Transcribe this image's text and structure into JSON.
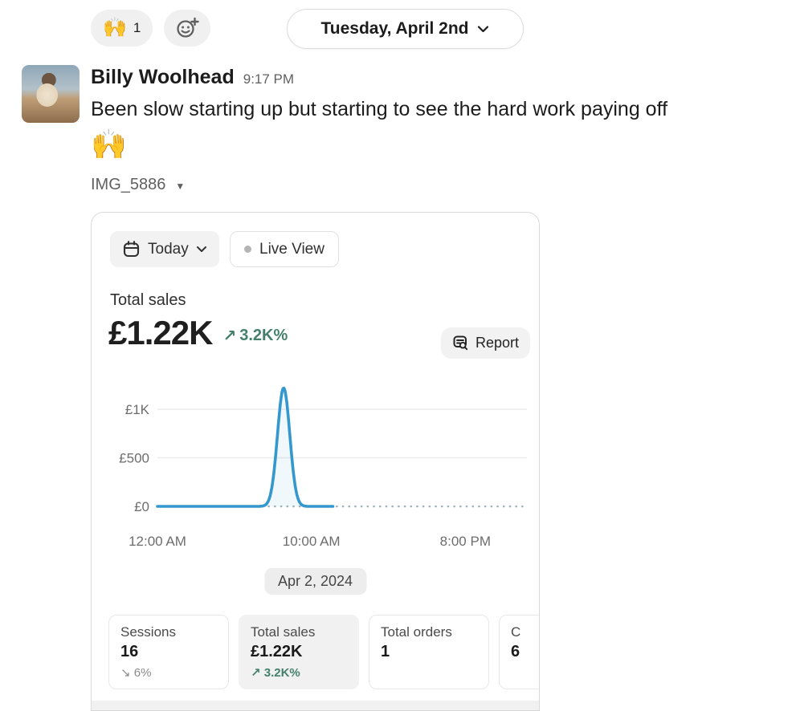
{
  "reactions": {
    "emoji": "🙌",
    "count": "1"
  },
  "date_divider": {
    "label": "Tuesday, April 2nd"
  },
  "message": {
    "author": "Billy Woolhead",
    "timestamp": "9:17 PM",
    "text": "Been slow starting up but starting to see the hard work paying off",
    "emoji": "🙌",
    "attachment_name": "IMG_5886"
  },
  "dashboard": {
    "date_range_button": "Today",
    "live_view_button": "Live View",
    "metric_title": "Total sales",
    "metric_value": "£1.22K",
    "metric_delta_arrow": "↗",
    "metric_delta": "3.2K%",
    "report_button": "Report",
    "date_pill": "Apr 2, 2024",
    "cards": [
      {
        "label": "Sessions",
        "value": "16",
        "delta_arrow": "↘",
        "delta": "6%",
        "direction": "down",
        "selected": false
      },
      {
        "label": "Total sales",
        "value": "£1.22K",
        "delta_arrow": "↗",
        "delta": "3.2K%",
        "direction": "up",
        "selected": true
      },
      {
        "label": "Total orders",
        "value": "1",
        "delta_arrow": "",
        "delta": "",
        "direction": "none",
        "selected": false
      },
      {
        "label": "C",
        "value": "6",
        "delta_arrow": "",
        "delta": "",
        "direction": "none",
        "selected": false,
        "clipped_by_image_edge": true
      }
    ]
  },
  "chart_data": {
    "type": "line",
    "title": "Total sales",
    "x_ticks": [
      "12:00 AM",
      "10:00 AM",
      "8:00 PM"
    ],
    "x_tick_hours": [
      0,
      10,
      20
    ],
    "y_ticks": [
      "£1K",
      "£500",
      "£0"
    ],
    "y_tick_values": [
      1000,
      500,
      0
    ],
    "ylim": [
      0,
      1250
    ],
    "x_range_hours": [
      0,
      24
    ],
    "grid": "horizontal-faint",
    "legend": "none",
    "series": [
      {
        "name": "today-sales",
        "style": "solid",
        "color": "#3498cf",
        "baseline_value": 0,
        "start_hour": 0,
        "end_hour": 11.4,
        "spike": {
          "peak_hour": 8.2,
          "peak_value": 1220,
          "sigma_hours": 0.4
        },
        "note": "flat at £0 all day except one spike peaking ~£1.22K around 8 AM; solid line ends ~11 AM (current time)"
      },
      {
        "name": "comparison-projection",
        "style": "dotted",
        "color": "#9fb3b8",
        "value": 0,
        "start_hour": 0,
        "end_hour": 24,
        "note": "dotted flat line at £0 across the full day"
      }
    ]
  },
  "colors": {
    "accent_blue": "#3498cf",
    "positive_green": "#44806c",
    "muted_gray_text": "#616061",
    "pill_gray_bg": "#f2f2f2",
    "card_border": "#d9d9d9"
  }
}
